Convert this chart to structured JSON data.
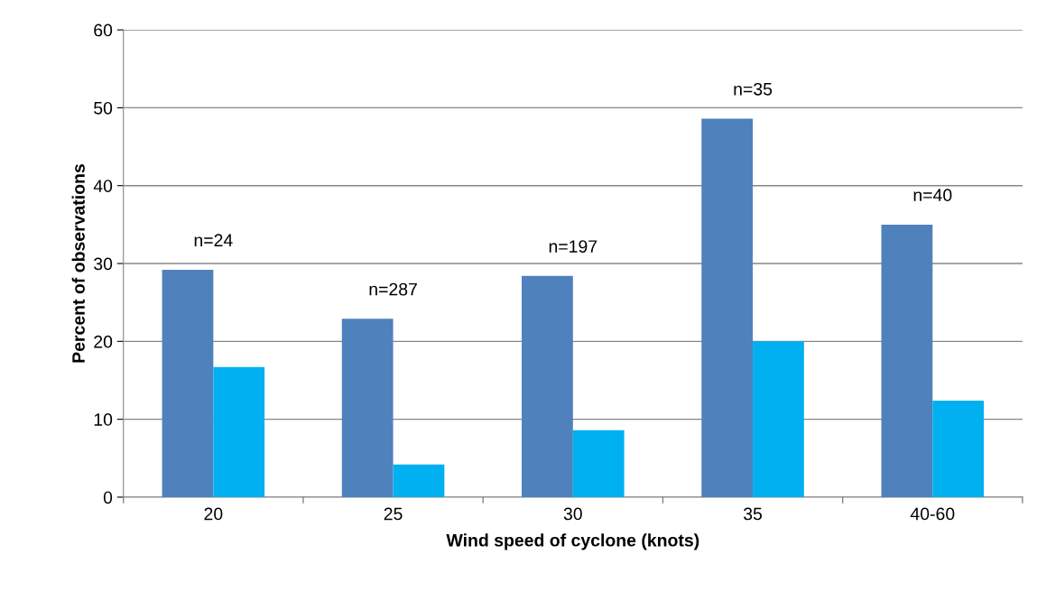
{
  "chart_data": {
    "type": "bar",
    "xlabel": "Wind speed of cyclone (knots)",
    "ylabel": "Percent of observations",
    "categories": [
      "20",
      "25",
      "30",
      "35",
      "40-60"
    ],
    "series": [
      {
        "color": "#4f81bd",
        "values": [
          29.2,
          22.9,
          28.4,
          48.6,
          35.0
        ]
      },
      {
        "color": "#00b0f0",
        "values": [
          16.7,
          4.2,
          8.6,
          20.0,
          12.4
        ]
      }
    ],
    "ylim": [
      0,
      60
    ],
    "yticks": [
      0,
      10,
      20,
      30,
      40,
      50,
      60
    ],
    "grid": "y",
    "annotations": [
      "n=24",
      "n=287",
      "n=197",
      "n=35",
      "n=40"
    ]
  }
}
